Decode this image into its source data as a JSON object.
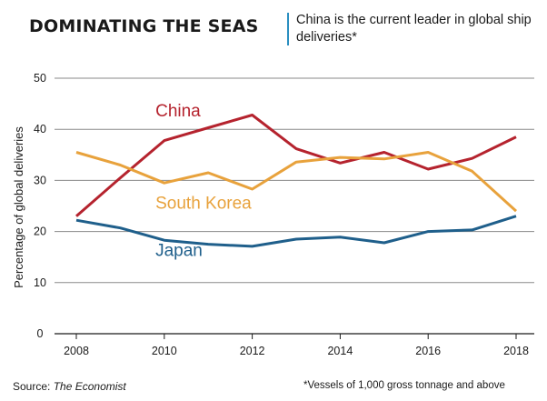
{
  "header": {
    "title": "DOMINATING THE SEAS",
    "subtitle": "China is the current leader in global ship deliveries*"
  },
  "footer": {
    "source_prefix": "Source:",
    "source_name": "The Economist",
    "footnote": "*Vessels of 1,000 gross tonnage and above"
  },
  "chart_data": {
    "type": "line",
    "title": "DOMINATING THE SEAS",
    "subtitle": "China is the current leader in global ship deliveries*",
    "xlabel": "",
    "ylabel": "Percentage of global deliveries",
    "x": [
      2008,
      2009,
      2010,
      2011,
      2012,
      2013,
      2014,
      2015,
      2016,
      2017,
      2018
    ],
    "x_ticks": [
      "2008",
      "2010",
      "2012",
      "2014",
      "2016",
      "2018"
    ],
    "y_ticks": [
      "0",
      "10",
      "20",
      "30",
      "40",
      "50"
    ],
    "xlim": [
      2008,
      2018
    ],
    "ylim": [
      0,
      50
    ],
    "grid": "horizontal",
    "series": [
      {
        "name": "China",
        "color": "#b5232e",
        "values": [
          23,
          30.5,
          37.8,
          40.3,
          42.8,
          36.2,
          33.4,
          35.5,
          32.2,
          34.3,
          38.5
        ]
      },
      {
        "name": "South Korea",
        "color": "#e8a23c",
        "values": [
          35.5,
          33,
          29.5,
          31.5,
          28.3,
          33.6,
          34.5,
          34.2,
          35.5,
          31.8,
          24
        ]
      },
      {
        "name": "Japan",
        "color": "#1f5f8b",
        "values": [
          22.2,
          20.7,
          18.3,
          17.5,
          17.1,
          18.5,
          18.9,
          17.8,
          20,
          20.3,
          23
        ]
      }
    ]
  }
}
